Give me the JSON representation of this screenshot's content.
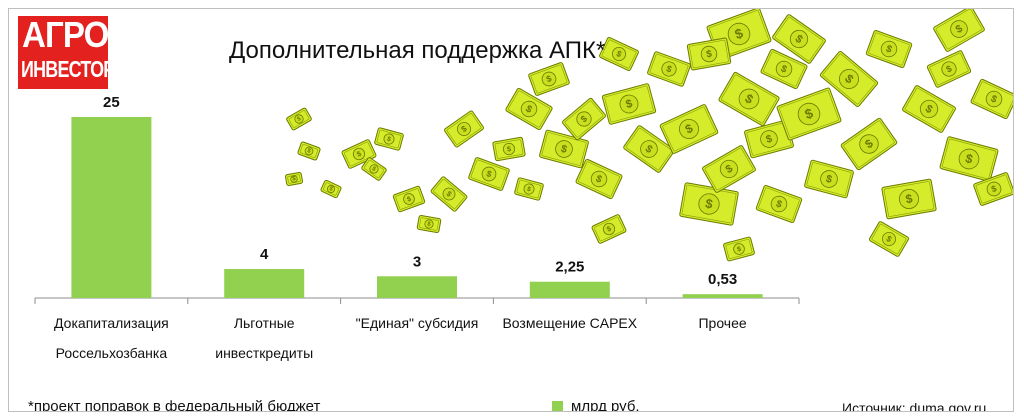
{
  "logo": {
    "line1": "АГРО",
    "line2": "ИНВЕСТОР"
  },
  "chart_data": {
    "type": "bar",
    "title": "Дополнительная поддержка АПК*",
    "categories": [
      [
        "Докапитализация",
        "Россельхозбанка"
      ],
      [
        "Льготные",
        "инвесткредиты"
      ],
      [
        "\"Единая\" субсидия"
      ],
      [
        "Возмещение CAPEX"
      ],
      [
        "Прочее"
      ]
    ],
    "values": [
      25,
      4,
      3,
      2.25,
      0.53
    ],
    "data_labels": [
      "25",
      "4",
      "3",
      "2,25",
      "0,53"
    ],
    "series": [
      {
        "name": "млрд руб.",
        "values": [
          25,
          4,
          3,
          2.25,
          0.53
        ]
      }
    ],
    "ylim": [
      0,
      25
    ],
    "bar_color": "#92d050",
    "grid": false,
    "legend_position": "bottom"
  },
  "footnote": "*проект поправок в федеральный бюджет",
  "legend_label": "млрд руб.",
  "source": "Источник: duma.gov.ru",
  "colors": {
    "brand_red": "#e3211f",
    "bar_green": "#92d050",
    "bill_yellow": "#d4ec2a",
    "bill_outline": "#6b7a00"
  },
  "decoration": {
    "icon": "dollar-bill-icon"
  }
}
